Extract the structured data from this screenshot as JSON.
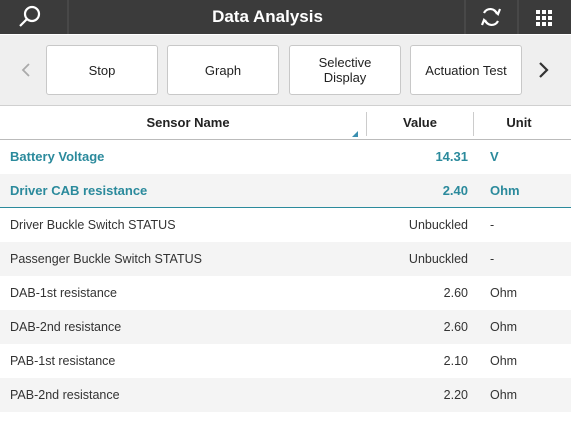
{
  "header": {
    "title": "Data Analysis"
  },
  "toolbar": {
    "buttons": [
      "Stop",
      "Graph",
      "Selective Display",
      "Actuation Test"
    ]
  },
  "table": {
    "columns": [
      "Sensor Name",
      "Value",
      "Unit"
    ],
    "rows": [
      [
        "Battery Voltage",
        "14.31",
        "V"
      ],
      [
        "Driver CAB resistance",
        "2.40",
        "Ohm"
      ],
      [
        "Driver Buckle Switch STATUS",
        "Unbuckled",
        "-"
      ],
      [
        "Passenger Buckle Switch STATUS",
        "Unbuckled",
        "-"
      ],
      [
        "DAB-1st resistance",
        "2.60",
        "Ohm"
      ],
      [
        "DAB-2nd resistance",
        "2.60",
        "Ohm"
      ],
      [
        "PAB-1st resistance",
        "2.10",
        "Ohm"
      ],
      [
        "PAB-2nd resistance",
        "2.20",
        "Ohm"
      ]
    ]
  }
}
